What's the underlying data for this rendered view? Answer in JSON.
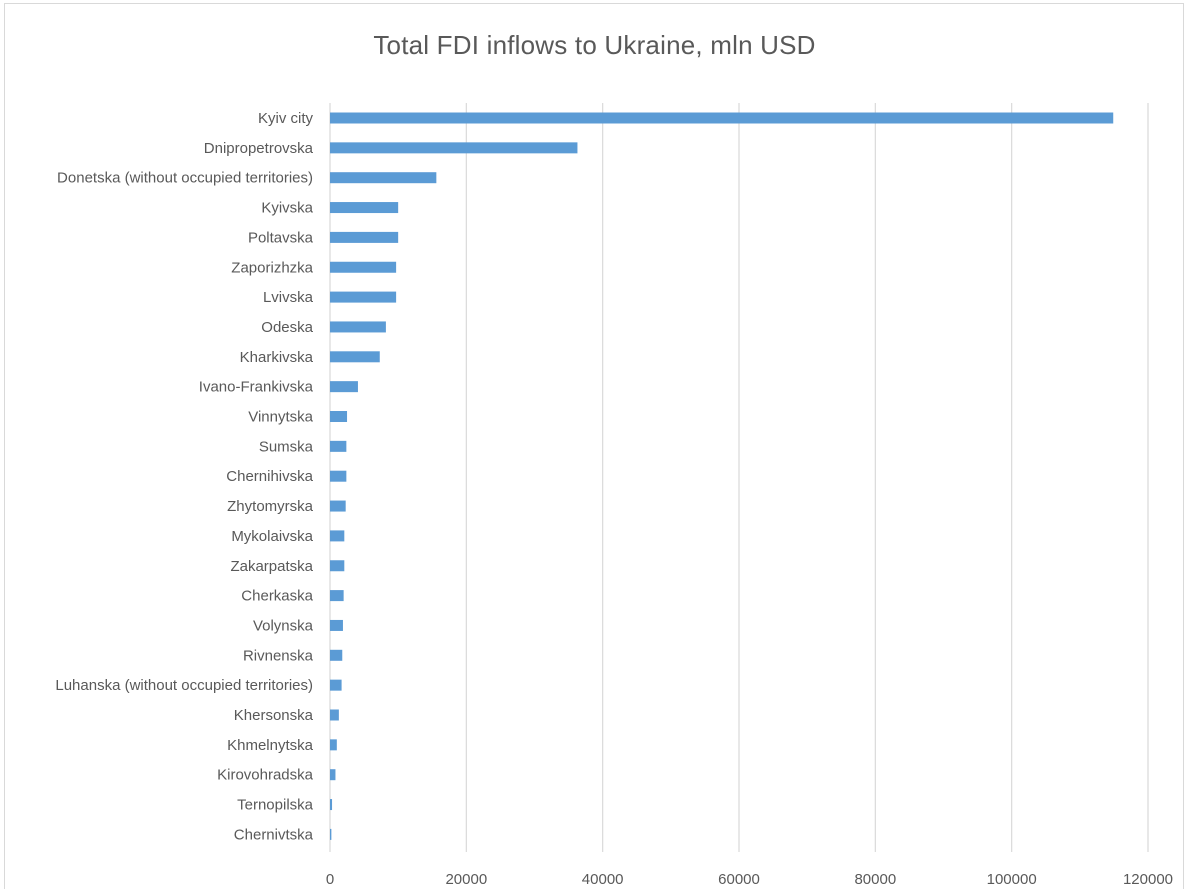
{
  "chart_data": {
    "type": "bar",
    "orientation": "horizontal",
    "title": "Total FDI inflows to Ukraine, mln USD",
    "xlabel": "",
    "ylabel": "",
    "xlim": [
      0,
      120000
    ],
    "xticks": [
      0,
      20000,
      40000,
      60000,
      80000,
      100000,
      120000
    ],
    "grid": true,
    "legend": "none",
    "bar_color": "#5b9bd5",
    "categories": [
      "Kyiv city",
      "Dnipropetrovska",
      "Donetska (without occupied territories)",
      "Kyivska",
      "Poltavska",
      "Zaporizhzka",
      "Lvivska",
      "Odeska",
      "Kharkivska",
      "Ivano-Frankivska",
      "Vinnytska",
      "Sumska",
      "Chernihivska",
      "Zhytomyrska",
      "Mykolaivska",
      "Zakarpatska",
      "Cherkaska",
      "Volynska",
      "Rivnenska",
      "Luhanska (without occupied territories)",
      "Khersonska",
      "Khmelnytska",
      "Kirovohradska",
      "Ternopilska",
      "Chernivtska"
    ],
    "values": [
      114900,
      36300,
      15600,
      10000,
      10000,
      9700,
      9700,
      8200,
      7300,
      4100,
      2500,
      2400,
      2400,
      2300,
      2100,
      2100,
      2000,
      1900,
      1800,
      1700,
      1300,
      1000,
      800,
      300,
      200
    ]
  }
}
